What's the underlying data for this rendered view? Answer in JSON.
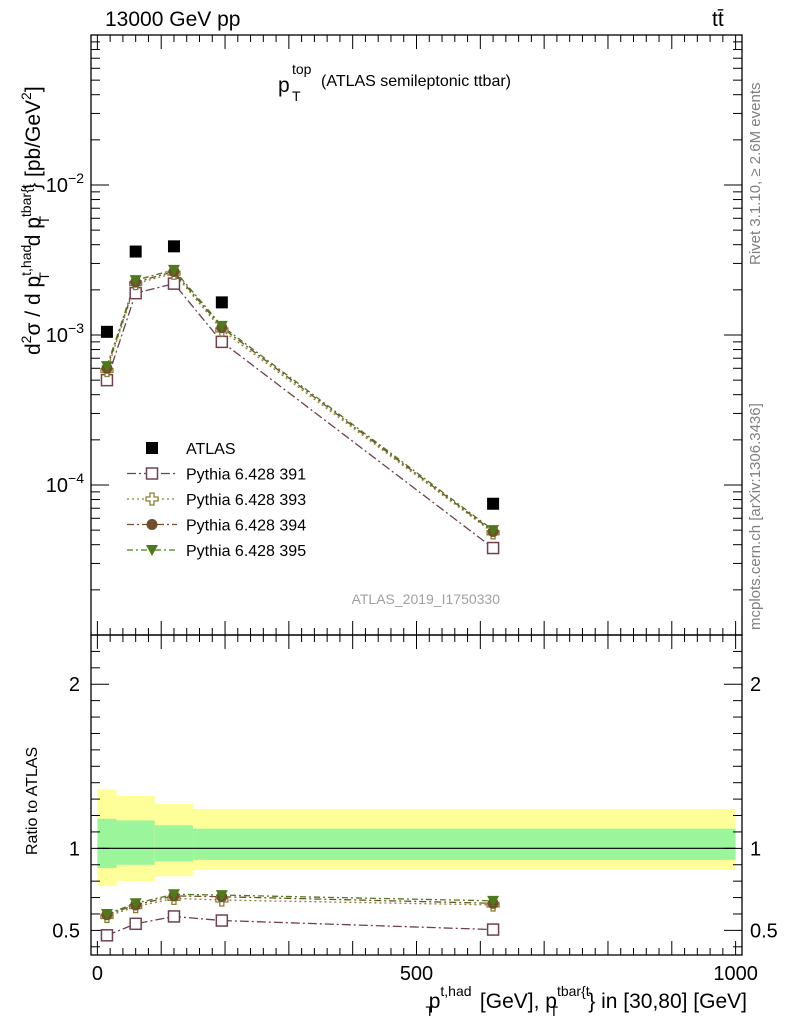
{
  "header": {
    "energy_label": "13000 GeV pp",
    "process_label": "tt̄"
  },
  "plot_title": {
    "main": "p",
    "sup": "top",
    "sub": "T",
    "rest": "(ATLAS semileptonic ttbar)"
  },
  "analysis_id": "ATLAS_2019_I1750330",
  "side_labels": {
    "rivet": "Rivet 3.1.10, ≥ 2.6M events",
    "mcplots": "mcplots.cern.ch [arXiv:1306.3436]"
  },
  "y_axis_top": {
    "parts": [
      "d",
      "2",
      "σ / d p",
      "t,had",
      "T",
      " d p",
      "tbar{t",
      "T",
      "} [pb/GeV",
      "2",
      "]"
    ]
  },
  "y_axis_bottom": {
    "label": "Ratio to ATLAS"
  },
  "x_axis": {
    "parts": [
      "p",
      "t,had",
      "T",
      " [GeV], p",
      "tbar{t",
      "T",
      "} in [30,80] [GeV]"
    ]
  },
  "colors": {
    "band_inner": "#9bf59b",
    "band_outer": "#ffff99",
    "s391": "#70404f",
    "s393": "#8a8030",
    "s394": "#70502a",
    "s395": "#4e7a1c"
  },
  "chart_data": [
    {
      "type": "scatter",
      "panel": "main",
      "yscale": "log",
      "xlim": [
        -10,
        1010
      ],
      "ylim": [
        1e-05,
        0.1
      ],
      "y_tick_labels": [
        "10^-4",
        "10^-3",
        "10^-2"
      ],
      "series": [
        {
          "name": "ATLAS",
          "marker": "filled-square",
          "x": [
            15,
            60,
            120,
            195,
            620
          ],
          "y": [
            0.00105,
            0.0036,
            0.0039,
            0.00165,
            7.5e-05
          ]
        },
        {
          "name": "Pythia 6.428 391",
          "marker": "open-square",
          "line": "dash-dot",
          "x": [
            15,
            60,
            120,
            195,
            620
          ],
          "y": [
            0.0005,
            0.0019,
            0.0022,
            0.0009,
            3.8e-05
          ]
        },
        {
          "name": "Pythia 6.428 393",
          "marker": "open-cross",
          "line": "dotted",
          "x": [
            15,
            60,
            120,
            195,
            620
          ],
          "y": [
            0.00058,
            0.0022,
            0.00258,
            0.00108,
            4.8e-05
          ]
        },
        {
          "name": "Pythia 6.428 394",
          "marker": "filled-circle",
          "line": "dash-dot",
          "x": [
            15,
            60,
            120,
            195,
            620
          ],
          "y": [
            0.0006,
            0.00225,
            0.00265,
            0.00112,
            4.9e-05
          ]
        },
        {
          "name": "Pythia 6.428 395",
          "marker": "filled-triangle",
          "line": "dash-dot",
          "x": [
            15,
            60,
            120,
            195,
            620
          ],
          "y": [
            0.00062,
            0.00232,
            0.00272,
            0.00115,
            5e-05
          ]
        }
      ]
    },
    {
      "type": "line",
      "panel": "ratio",
      "xlim": [
        -10,
        1010
      ],
      "ylim": [
        0.35,
        2.3
      ],
      "x_ticks": [
        0,
        500,
        1000
      ],
      "x_tick_labels": [
        "0",
        "500",
        "1000"
      ],
      "y_ticks": [
        0.5,
        1,
        2
      ],
      "y_tick_labels": [
        "0.5",
        "1",
        "2"
      ],
      "bands": [
        {
          "x0": 0,
          "x1": 30,
          "inner": [
            0.88,
            1.18
          ],
          "outer": [
            0.77,
            1.36
          ]
        },
        {
          "x0": 30,
          "x1": 90,
          "inner": [
            0.9,
            1.17
          ],
          "outer": [
            0.8,
            1.32
          ]
        },
        {
          "x0": 90,
          "x1": 150,
          "inner": [
            0.92,
            1.14
          ],
          "outer": [
            0.83,
            1.27
          ]
        },
        {
          "x0": 150,
          "x1": 1000,
          "inner": [
            0.93,
            1.12
          ],
          "outer": [
            0.87,
            1.24
          ]
        }
      ],
      "series": [
        {
          "name": "Pythia 6.428 391",
          "x": [
            15,
            60,
            120,
            195,
            620
          ],
          "y": [
            0.47,
            0.54,
            0.585,
            0.56,
            0.505
          ]
        },
        {
          "name": "Pythia 6.428 393",
          "x": [
            15,
            60,
            120,
            195,
            620
          ],
          "y": [
            0.585,
            0.645,
            0.695,
            0.685,
            0.655
          ]
        },
        {
          "name": "Pythia 6.428 394",
          "x": [
            15,
            60,
            120,
            195,
            620
          ],
          "y": [
            0.595,
            0.655,
            0.71,
            0.705,
            0.665
          ]
        },
        {
          "name": "Pythia 6.428 395",
          "x": [
            15,
            60,
            120,
            195,
            620
          ],
          "y": [
            0.6,
            0.665,
            0.72,
            0.715,
            0.68
          ]
        }
      ]
    }
  ]
}
